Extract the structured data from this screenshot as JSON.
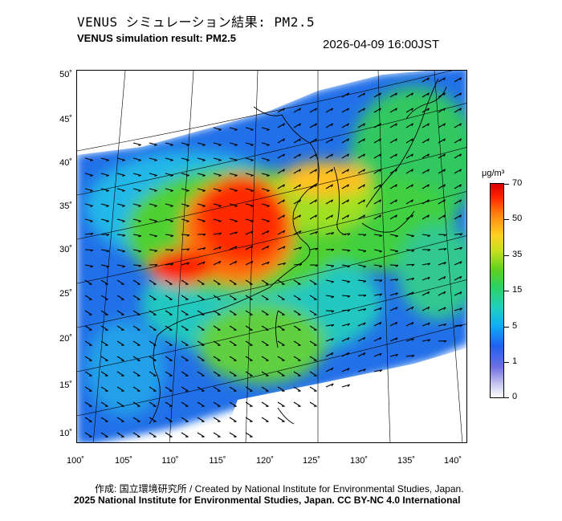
{
  "header": {
    "title_jp": "VENUS シミュレーション結果: PM2.5",
    "title_en": "VENUS simulation result: PM2.5",
    "timestamp": "2026-04-09 16:00JST"
  },
  "map": {
    "lat_labels": [
      "50˚",
      "45˚",
      "40˚",
      "35˚",
      "30˚",
      "25˚",
      "20˚",
      "15˚",
      "10˚"
    ],
    "lon_labels": [
      "100˚",
      "105˚",
      "110˚",
      "115˚",
      "120˚",
      "125˚",
      "130˚",
      "135˚",
      "140˚"
    ]
  },
  "colorbar": {
    "unit": "μg/m³",
    "labels": [
      "70",
      "50",
      "35",
      "15",
      "5",
      "1",
      "0"
    ],
    "colors": {
      "low": "#ffffff",
      "mid": "#30d060",
      "high": "#d80000"
    }
  },
  "footer": {
    "credit": "作成: 国立環境研究所 / Created by National Institute for Environmental Studies, Japan.",
    "copyright": "2025 National Institute for Environmental Studies, Japan. CC BY-NC 4.0 International"
  }
}
